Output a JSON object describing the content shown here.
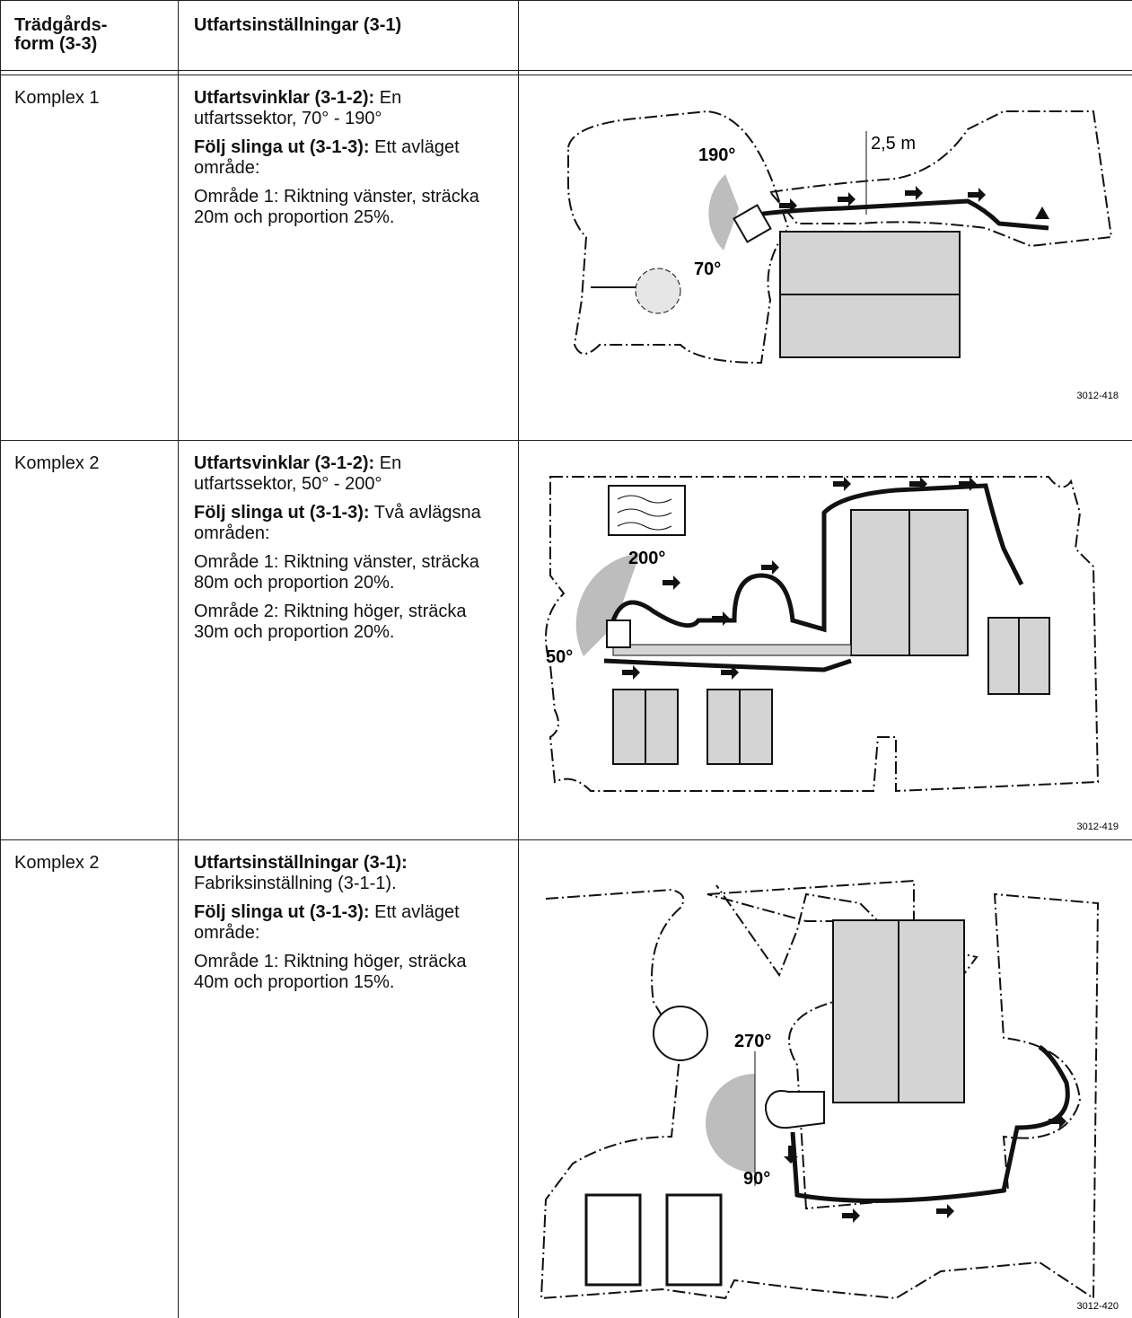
{
  "table": {
    "headers": [
      [
        "Trädgårds-",
        "form (3-3)"
      ],
      [
        "Utfartsinställningar (3-1)"
      ]
    ],
    "rows": [
      {
        "shape": "Komplex 1",
        "paragraphs": [
          {
            "label": "Utfartsvinklar (3-1-2):",
            "text": "En utfartssektor, 70° - 190°"
          },
          {
            "label": "Följ slinga ut (3-1-3):",
            "text": "Ett avläget område:"
          },
          {
            "text": "Område 1: Riktning vänster, sträcka 20m och proportion 25%."
          }
        ],
        "figure": {
          "angle_high": "190°",
          "angle_low": "70°",
          "distance": "2,5 m",
          "code": "3012-418"
        }
      },
      {
        "shape": "Komplex 2",
        "paragraphs": [
          {
            "label": "Utfartsvinklar (3-1-2):",
            "text": "En utfartssektor, 50° - 200°"
          },
          {
            "label": "Följ slinga ut (3-1-3):",
            "text": "Två avlägsna områden:"
          },
          {
            "text": "Område 1: Riktning vänster, sträcka 80m och proportion 20%."
          },
          {
            "text": "Område 2: Riktning höger, sträcka 30m och proportion 20%."
          }
        ],
        "figure": {
          "angle_high": "200°",
          "angle_low": "50°",
          "code": "3012-419"
        }
      },
      {
        "shape": "Komplex 2",
        "paragraphs": [
          {
            "label": "Utfartsinställningar (3-1):",
            "text": "Fabriksinställning (3-1-1)."
          },
          {
            "label": "Följ slinga ut (3-1-3):",
            "text": "Ett avläget område:"
          },
          {
            "text": "Område 1: Riktning höger, sträcka 40m och proportion 15%."
          }
        ],
        "figure": {
          "angle_high": "270°",
          "angle_low": "90°",
          "code": "3012-420"
        }
      }
    ]
  }
}
